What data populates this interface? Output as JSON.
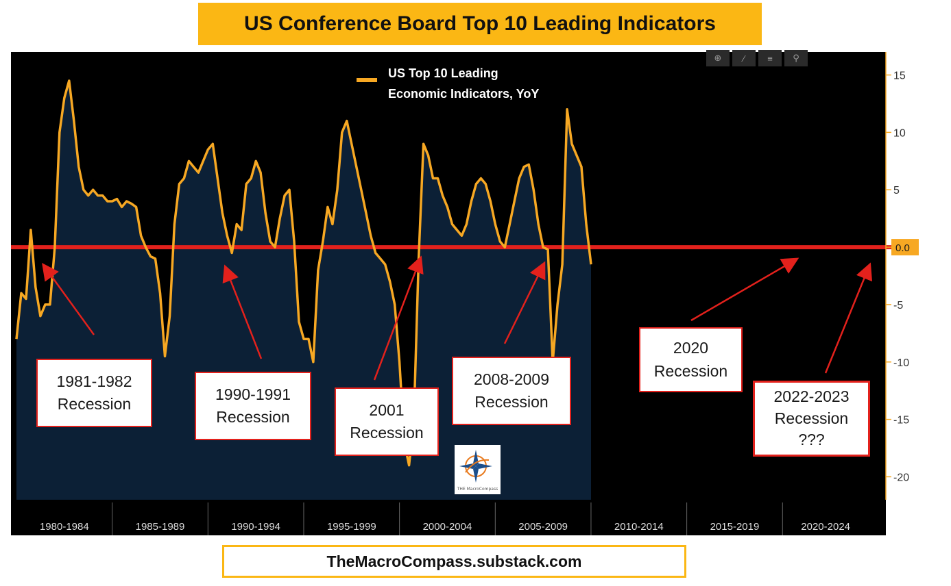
{
  "title": "US Conference Board Top 10 Leading Indicators",
  "footer": "TheMacroCompass.substack.com",
  "logo_text": "THE MacroCompass",
  "toolbar_icons": [
    "crosshair-icon",
    "pencil-icon",
    "list-icon",
    "magnifier-icon"
  ],
  "colors": {
    "background": "#000000",
    "area": "#0c2036",
    "line": "#f7a823",
    "zero_line": "#e3211c",
    "annotation_border": "#e3211c",
    "title_bg": "#fbb714"
  },
  "annotations": [
    {
      "text": "1981-1982\nRecession"
    },
    {
      "text": "1990-1991\nRecession"
    },
    {
      "text": "2001\nRecession"
    },
    {
      "text": "2008-2009\nRecession"
    },
    {
      "text": "2020\nRecession"
    },
    {
      "text": "2022-2023\nRecession\n???"
    }
  ],
  "chart_data": {
    "type": "area",
    "series": [
      {
        "name": "US Top 10 Leading Economic Indicators, YoY",
        "x_start": 1980.0,
        "x_step": 0.25,
        "values": [
          -8,
          -4,
          -4.5,
          1.5,
          -3.5,
          -6,
          -5,
          -5,
          0,
          10,
          13,
          14.5,
          11,
          7,
          5,
          4.5,
          5,
          4.5,
          4.5,
          4,
          4,
          4.2,
          3.5,
          4,
          3.8,
          3.5,
          1,
          0,
          -0.8,
          -1,
          -4,
          -9.5,
          -6,
          2,
          5.5,
          6,
          7.5,
          7,
          6.5,
          7.5,
          8.5,
          9,
          6,
          3,
          1,
          -0.5,
          2,
          1.5,
          5.5,
          6,
          7.5,
          6.5,
          3,
          0.5,
          0,
          2.5,
          4.5,
          5,
          0.5,
          -6.5,
          -8,
          -8,
          -10,
          -2,
          0.5,
          3.5,
          2,
          5,
          10,
          11,
          9,
          7,
          5,
          3,
          1,
          -0.5,
          -1,
          -1.5,
          -3,
          -5,
          -10,
          -17,
          -19,
          -15,
          -1,
          9,
          8,
          6,
          6,
          4.5,
          3.5,
          2,
          1.5,
          1,
          2,
          4,
          5.5,
          6,
          5.5,
          4,
          2,
          0.5,
          0,
          2,
          4,
          6,
          7,
          7.2,
          5,
          2,
          0,
          -0.2,
          -10,
          -5,
          -1.5,
          12,
          9,
          8,
          7,
          2,
          -1.5
        ]
      }
    ],
    "xlim": [
      1980.0,
      2024.25
    ],
    "ylim": [
      -22,
      17
    ],
    "y_ticks": [
      15,
      10,
      5,
      0,
      -5,
      -10,
      -15,
      -20
    ],
    "y_tick_labels": [
      "15",
      "10",
      "5",
      "",
      "-5",
      "-10",
      "-15",
      "-20"
    ],
    "x_period_labels": [
      "1980-1984",
      "1985-1989",
      "1990-1994",
      "1995-1999",
      "2000-2004",
      "2005-2009",
      "2010-2014",
      "2015-2019",
      "2020-2024"
    ],
    "reference_line": {
      "value": 0,
      "label": "0.0"
    },
    "legend": {
      "label_line1": "US Top 10 Leading",
      "label_line2": "Economic Indicators, YoY",
      "placement": "top-center"
    },
    "grid": false
  }
}
